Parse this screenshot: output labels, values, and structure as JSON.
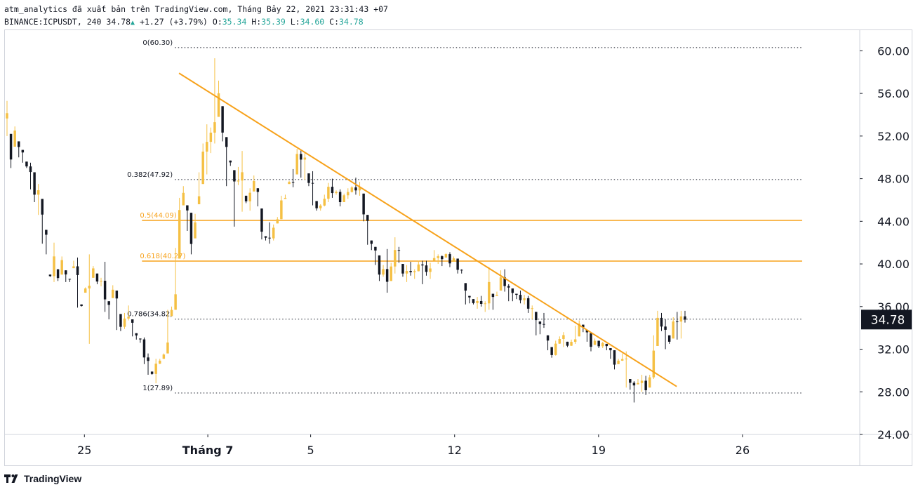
{
  "header": {
    "publish_line": "atm_analytics đã xuất bản trên TradingView.com, Tháng Bảy 22, 2021 23:31:43 +07",
    "symbol": "BINANCE:ICPUSDT, 240",
    "last": "34.78",
    "change": "+1.27 (+3.79%)",
    "ohlc": {
      "o_label": "O:",
      "o": "35.34",
      "h_label": "H:",
      "h": "35.39",
      "l_label": "L:",
      "l": "34.60",
      "c_label": "C:",
      "c": "34.78"
    }
  },
  "brand": {
    "name": "TradingView",
    "color": "#131722"
  },
  "colors": {
    "bull": "#f5c044",
    "bear": "#131722",
    "accent": "#f7a21b",
    "grid_dots": "#363a45",
    "price_tag_bg": "#131722"
  },
  "chart_data": {
    "type": "candlestick",
    "ylim": [
      24,
      62
    ],
    "y_ticks": [
      "24.00",
      "28.00",
      "32.00",
      "36.00",
      "40.00",
      "44.00",
      "48.00",
      "52.00",
      "56.00",
      "60.00"
    ],
    "x_ticks": [
      {
        "label": "25",
        "day": 25,
        "bold": false
      },
      {
        "label": "Tháng 7",
        "day": 31,
        "bold": true
      },
      {
        "label": "5",
        "day": 36,
        "bold": false
      },
      {
        "label": "12",
        "day": 43,
        "bold": false
      },
      {
        "label": "19",
        "day": 50,
        "bold": false
      },
      {
        "label": "26",
        "day": 57,
        "bold": false
      }
    ],
    "x_range_days": [
      21.1,
      62.7
    ],
    "last_price": "34.78",
    "fib_levels": [
      {
        "label": "0(60.30)",
        "value": 60.3,
        "highlight": false
      },
      {
        "label": "0.382(47.92)",
        "value": 47.92,
        "highlight": false
      },
      {
        "label": "0.5(44.09)",
        "value": 44.09,
        "highlight": true
      },
      {
        "label": "0.618(40.27)",
        "value": 40.27,
        "highlight": true
      },
      {
        "label": "0.786(34.82)",
        "value": 34.82,
        "highlight": false
      },
      {
        "label": "1(27.89)",
        "value": 27.89,
        "highlight": false
      }
    ],
    "trendline": {
      "x1_day": 29.6,
      "y1": 57.9,
      "x2_day": 53.8,
      "y2": 28.5
    },
    "candles": [
      [
        52.0,
        55.3
      ],
      [
        49.0,
        52.2
      ],
      [
        51.0,
        52.9
      ],
      [
        50.0,
        51.5
      ],
      [
        49.5,
        50.7
      ],
      [
        49.0,
        49.6
      ],
      [
        47.0,
        49.5
      ],
      [
        45.8,
        48.6
      ],
      [
        44.6,
        47.5
      ],
      [
        41.9,
        46.1
      ],
      [
        40.9,
        43.2
      ],
      [
        38.8,
        39.0
      ],
      [
        38.3,
        42.0
      ],
      [
        38.4,
        39.5
      ],
      [
        39.0,
        40.7
      ],
      [
        38.3,
        39.4
      ],
      [
        38.3,
        38.6
      ],
      [
        39.6,
        40.3
      ],
      [
        35.9,
        40.6
      ],
      [
        36.0,
        36.2
      ],
      [
        37.3,
        37.8
      ],
      [
        32.5,
        40.9
      ],
      [
        38.7,
        39.8
      ],
      [
        38.1,
        39.1
      ],
      [
        37.9,
        38.7
      ],
      [
        35.5,
        40.2
      ],
      [
        34.8,
        36.5
      ],
      [
        36.8,
        38.0
      ],
      [
        33.8,
        37.5
      ],
      [
        33.7,
        35.3
      ],
      [
        33.9,
        35.4
      ],
      [
        34.7,
        36.1
      ],
      [
        33.2,
        34.8
      ],
      [
        32.9,
        33.5
      ],
      [
        32.6,
        33.0
      ],
      [
        30.6,
        33.1
      ],
      [
        29.6,
        31.6
      ],
      [
        29.6,
        29.9
      ],
      [
        28.8,
        31.1
      ],
      [
        30.6,
        31.1
      ],
      [
        31.1,
        31.6
      ],
      [
        31.6,
        35.7
      ],
      [
        35.1,
        36.0
      ],
      [
        35.7,
        41.5
      ],
      [
        40.5,
        46.2
      ],
      [
        45.5,
        47.3
      ],
      [
        43.1,
        45.5
      ],
      [
        40.9,
        44.8
      ],
      [
        42.4,
        44.7
      ],
      [
        45.6,
        48.6
      ],
      [
        47.5,
        51.3
      ],
      [
        48.4,
        53.1
      ],
      [
        50.4,
        52.8
      ],
      [
        51.3,
        59.3
      ],
      [
        53.8,
        57.2
      ],
      [
        51.5,
        54.8
      ],
      [
        47.3,
        51.9
      ],
      [
        49.2,
        49.7
      ],
      [
        43.5,
        48.8
      ],
      [
        47.4,
        49.1
      ],
      [
        44.9,
        50.6
      ],
      [
        45.7,
        46.4
      ],
      [
        45.0,
        47.1
      ],
      [
        46.8,
        48.3
      ],
      [
        45.4,
        47.1
      ],
      [
        42.3,
        45.2
      ],
      [
        42.2,
        42.6
      ],
      [
        41.9,
        43.9
      ],
      [
        42.2,
        43.7
      ],
      [
        43.8,
        44.4
      ],
      [
        44.2,
        46.4
      ],
      [
        46.1,
        46.5
      ],
      [
        47.5,
        47.8
      ],
      [
        47.2,
        48.9
      ],
      [
        48.4,
        50.8
      ],
      [
        48.1,
        50.7
      ],
      [
        47.9,
        50.5
      ],
      [
        47.3,
        48.5
      ],
      [
        45.5,
        48.7
      ],
      [
        45.0,
        45.9
      ],
      [
        45.0,
        45.6
      ],
      [
        45.4,
        46.5
      ],
      [
        45.8,
        47.6
      ],
      [
        46.2,
        48.0
      ],
      [
        46.5,
        46.9
      ],
      [
        45.4,
        47.0
      ],
      [
        45.8,
        46.6
      ],
      [
        46.1,
        47.1
      ],
      [
        46.7,
        47.3
      ],
      [
        46.5,
        48.1
      ],
      [
        46.4,
        47.7
      ],
      [
        44.0,
        46.6
      ],
      [
        41.8,
        44.6
      ],
      [
        41.3,
        42.2
      ],
      [
        39.9,
        41.6
      ],
      [
        38.4,
        40.8
      ],
      [
        38.8,
        39.9
      ],
      [
        37.3,
        41.4
      ],
      [
        38.4,
        40.1
      ],
      [
        39.1,
        42.5
      ],
      [
        40.1,
        41.6
      ],
      [
        38.8,
        40.0
      ],
      [
        38.3,
        39.9
      ],
      [
        38.9,
        40.2
      ],
      [
        38.6,
        39.5
      ],
      [
        39.3,
        40.3
      ],
      [
        38.1,
        40.3
      ],
      [
        38.9,
        40.3
      ],
      [
        38.6,
        40.1
      ],
      [
        40.3,
        41.3
      ],
      [
        40.0,
        40.9
      ],
      [
        39.8,
        40.8
      ],
      [
        40.6,
        41.0
      ],
      [
        39.7,
        41.1
      ],
      [
        40.2,
        40.7
      ],
      [
        39.1,
        40.5
      ],
      [
        39.1,
        39.5
      ],
      [
        36.2,
        38.2
      ],
      [
        36.3,
        37.0
      ],
      [
        36.2,
        36.7
      ],
      [
        35.8,
        36.9
      ],
      [
        36.0,
        37.0
      ],
      [
        35.5,
        36.5
      ],
      [
        35.7,
        39.7
      ],
      [
        35.7,
        37.2
      ],
      [
        37.0,
        37.4
      ],
      [
        37.5,
        39.4
      ],
      [
        37.4,
        39.5
      ],
      [
        36.5,
        38.1
      ],
      [
        36.5,
        37.7
      ],
      [
        36.7,
        37.2
      ],
      [
        36.3,
        37.5
      ],
      [
        36.2,
        37.1
      ],
      [
        35.4,
        37.0
      ],
      [
        34.8,
        36.1
      ],
      [
        33.3,
        35.5
      ],
      [
        33.4,
        34.6
      ],
      [
        34.0,
        35.4
      ],
      [
        31.9,
        33.3
      ],
      [
        31.2,
        32.2
      ],
      [
        31.4,
        32.8
      ],
      [
        32.5,
        33.2
      ],
      [
        32.2,
        33.6
      ],
      [
        32.2,
        32.7
      ],
      [
        32.3,
        32.9
      ],
      [
        32.5,
        34.2
      ],
      [
        33.2,
        34.7
      ],
      [
        33.6,
        34.3
      ],
      [
        32.7,
        33.8
      ],
      [
        31.8,
        33.5
      ],
      [
        32.4,
        33.0
      ],
      [
        32.1,
        32.8
      ],
      [
        32.1,
        32.7
      ],
      [
        31.9,
        32.5
      ],
      [
        31.1,
        32.1
      ],
      [
        30.1,
        31.9
      ],
      [
        30.6,
        31.1
      ],
      [
        30.9,
        31.6
      ],
      [
        28.4,
        31.8
      ],
      [
        28.2,
        29.2
      ],
      [
        27.0,
        29.0
      ],
      [
        28.7,
        29.2
      ],
      [
        28.0,
        29.6
      ],
      [
        27.7,
        29.5
      ],
      [
        28.4,
        29.6
      ],
      [
        29.2,
        33.3
      ],
      [
        32.3,
        35.6
      ],
      [
        33.7,
        35.4
      ],
      [
        32.0,
        34.8
      ],
      [
        32.5,
        33.3
      ],
      [
        33.0,
        35.0
      ],
      [
        32.9,
        35.5
      ],
      [
        33.0,
        35.6
      ],
      [
        34.5,
        35.6
      ]
    ]
  }
}
